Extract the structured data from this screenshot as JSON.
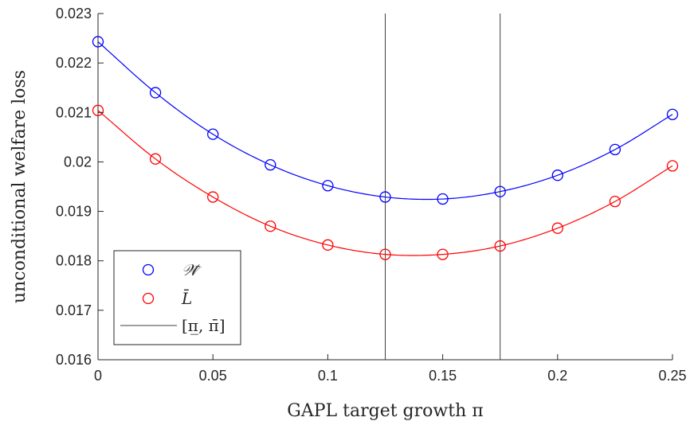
{
  "chart_data": {
    "type": "line",
    "xlabel": "GAPL target growth π",
    "ylabel": "unconditional welfare loss",
    "xlim": [
      0,
      0.25
    ],
    "ylim": [
      0.016,
      0.023
    ],
    "x_ticks": [
      "0",
      "0.05",
      "0.1",
      "0.15",
      "0.2",
      "0.25"
    ],
    "y_ticks": [
      "0.016",
      "0.017",
      "0.018",
      "0.019",
      "0.02",
      "0.021",
      "0.022",
      "0.023"
    ],
    "x": [
      0,
      0.025,
      0.05,
      0.075,
      0.1,
      0.125,
      0.15,
      0.175,
      0.2,
      0.225,
      0.25
    ],
    "series": [
      {
        "name": "𝒲̄",
        "color": "#0000ff",
        "marker": "circle",
        "values": [
          0.02243,
          0.0214,
          0.02056,
          0.01994,
          0.01952,
          0.01929,
          0.01925,
          0.0194,
          0.01973,
          0.02025,
          0.02096
        ]
      },
      {
        "name": "L̄",
        "color": "#ff0000",
        "marker": "circle",
        "values": [
          0.02104,
          0.02006,
          0.01929,
          0.0187,
          0.01832,
          0.01813,
          0.01813,
          0.0183,
          0.01866,
          0.0192,
          0.01992
        ]
      }
    ],
    "vertical_lines": {
      "name": "[π̲, π̄]",
      "color": "#404040",
      "x": [
        0.125,
        0.175
      ]
    },
    "legend_position": "bottom-left",
    "grid": false
  }
}
